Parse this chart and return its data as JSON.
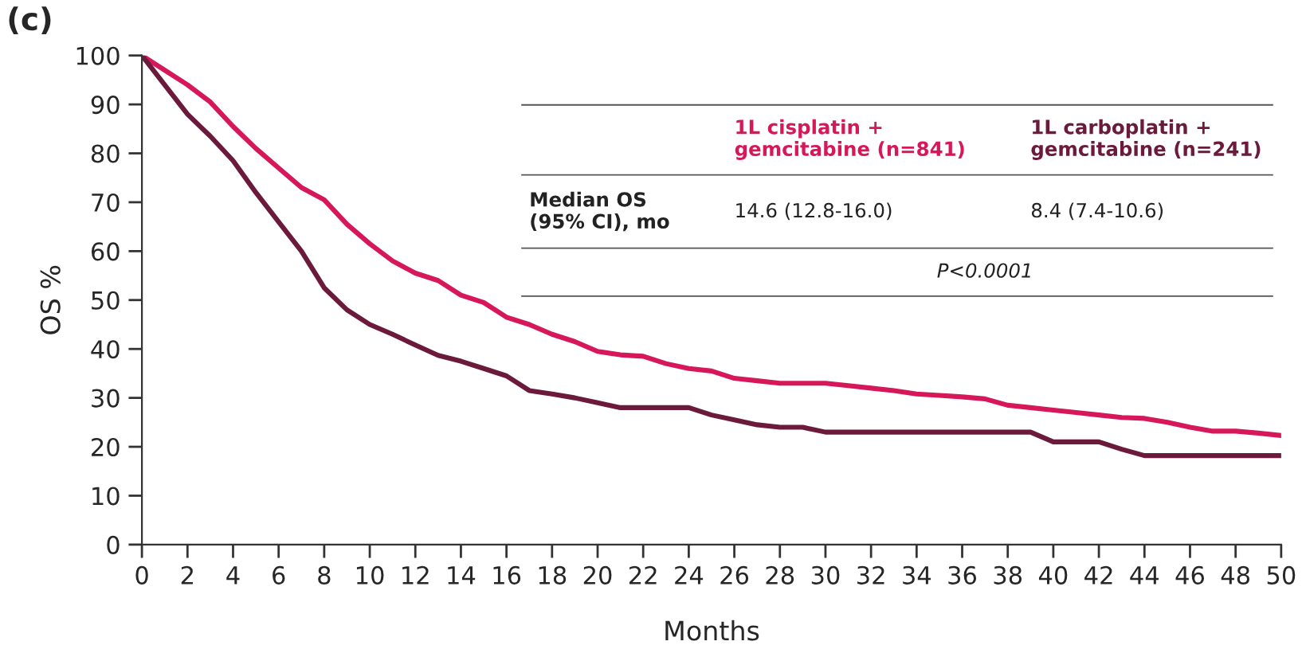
{
  "chart_data": {
    "type": "line",
    "title": "(c)",
    "xlabel": "Months",
    "ylabel": "OS %",
    "x": [
      0,
      1,
      2,
      3,
      4,
      5,
      6,
      7,
      8,
      9,
      10,
      11,
      12,
      13,
      14,
      15,
      16,
      17,
      18,
      19,
      20,
      21,
      22,
      23,
      24,
      25,
      26,
      27,
      28,
      29,
      30,
      31,
      32,
      33,
      34,
      35,
      36,
      37,
      38,
      39,
      40,
      41,
      42,
      43,
      44,
      45,
      46,
      47,
      48,
      49,
      50
    ],
    "series": [
      {
        "name": "1L cisplatin +\ngemcitabine (n=841)",
        "color": "#d6185a",
        "values": [
          100,
          97,
          94,
          90.5,
          85.5,
          81,
          77,
          73,
          70.5,
          65.5,
          61.5,
          58,
          55.5,
          54,
          51,
          49.5,
          46.5,
          45,
          43,
          41.5,
          39.5,
          38.8,
          38.5,
          37,
          36,
          35.5,
          34,
          33.5,
          33,
          33,
          33,
          32.5,
          32,
          31.5,
          30.8,
          30.5,
          30.2,
          29.8,
          28.5,
          28,
          27.5,
          27,
          26.5,
          26,
          25.8,
          25,
          24,
          23.2,
          23.2,
          22.8,
          22.3
        ]
      },
      {
        "name": "1L carboplatin +\ngemcitabine (n=241)",
        "color": "#6b1a3c",
        "values": [
          100,
          94,
          88,
          83.5,
          78.5,
          72,
          66,
          60,
          52.5,
          48,
          45,
          43,
          40.8,
          38.7,
          37.5,
          36,
          34.5,
          31.5,
          30.8,
          30,
          29,
          28,
          28,
          28,
          28,
          26.5,
          25.5,
          24.5,
          24,
          24,
          23,
          23,
          23,
          23,
          23,
          23,
          23,
          23,
          23,
          23,
          21,
          21,
          21,
          19.5,
          18.2,
          18.2,
          18.2,
          18.2,
          18.2,
          18.2,
          18.2
        ]
      }
    ],
    "annotations": [
      "Median OS\n(95% CI), mo",
      "14.6 (12.8-16.0)",
      "8.4 (7.4-10.6)",
      "P<0.0001"
    ],
    "xlim": [
      0,
      50
    ],
    "ylim": [
      0,
      100
    ],
    "xticks": [
      0,
      2,
      4,
      6,
      8,
      10,
      12,
      14,
      16,
      18,
      20,
      22,
      24,
      26,
      28,
      30,
      32,
      34,
      36,
      38,
      40,
      42,
      44,
      46,
      48,
      50
    ],
    "yticks": [
      0,
      10,
      20,
      30,
      40,
      50,
      60,
      70,
      80,
      90,
      100
    ],
    "grid": false,
    "legend": "top right",
    "marker": "none",
    "line_style": "solid"
  }
}
